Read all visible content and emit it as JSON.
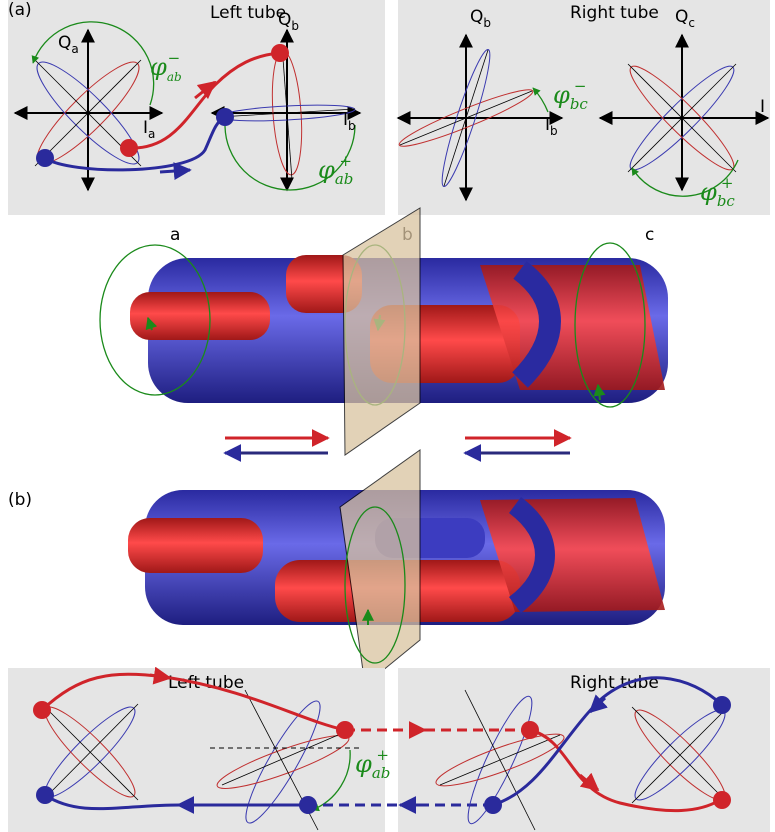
{
  "panel_a": {
    "label": "(a)",
    "left_tube": {
      "title": "Left tube",
      "axes": [
        {
          "q": "Q",
          "q_sub": "a",
          "i": "I",
          "i_sub": "a"
        },
        {
          "q": "Q",
          "q_sub": "b",
          "i": "I",
          "i_sub": "b"
        }
      ],
      "phase_minus": {
        "symbol": "φ",
        "sub": "ab",
        "sup": "−"
      },
      "phase_plus": {
        "symbol": "φ",
        "sub": "ab",
        "sup": "+"
      }
    },
    "right_tube": {
      "title": "Right tube",
      "axes": [
        {
          "q": "Q",
          "q_sub": "b",
          "i": "I",
          "i_sub": "b"
        },
        {
          "q": "Q",
          "q_sub": "c",
          "i": "I"
        }
      ],
      "phase_minus": {
        "symbol": "φ",
        "sub": "bc",
        "sup": "−"
      },
      "phase_plus": {
        "symbol": "φ",
        "sub": "bc",
        "sup": "+"
      }
    }
  },
  "middle": {
    "positions": [
      "a",
      "b",
      "c"
    ]
  },
  "panel_b": {
    "label": "(b)",
    "left_tube": {
      "title": "Left tube",
      "phase": {
        "symbol": "φ",
        "sub": "ab",
        "sup": "+"
      }
    },
    "right_tube": {
      "title": "Right tube"
    }
  }
}
